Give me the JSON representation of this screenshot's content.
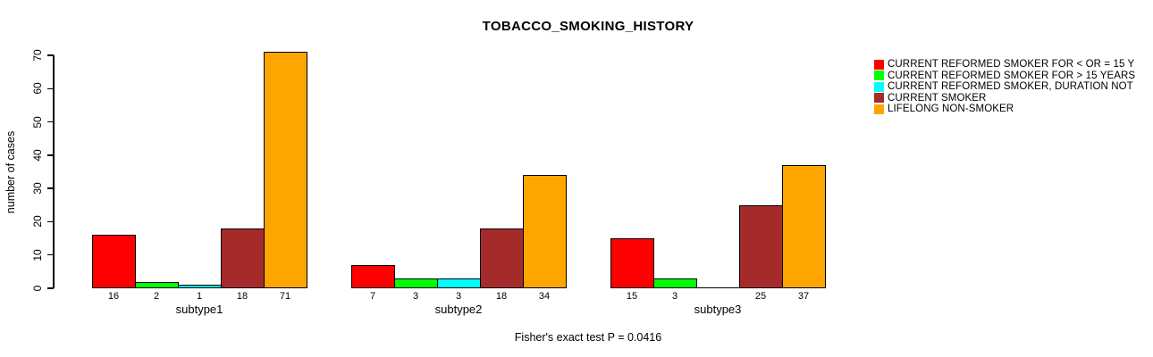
{
  "title": "TOBACCO_SMOKING_HISTORY",
  "caption": "Fisher's exact test P = 0.0416",
  "y_axis": {
    "label": "number of cases",
    "ticks": [
      "0",
      "10",
      "20",
      "30",
      "40",
      "50",
      "60",
      "70"
    ]
  },
  "legend": {
    "items": [
      {
        "label": "CURRENT REFORMED SMOKER FOR < OR = 15 Y",
        "color": "#FF0000",
        "swatch": "red-swatch"
      },
      {
        "label": "CURRENT REFORMED SMOKER FOR > 15 YEARS",
        "color": "#00FF00",
        "swatch": "green-swatch"
      },
      {
        "label": "CURRENT REFORMED SMOKER, DURATION NOT",
        "color": "#00FFFF",
        "swatch": "cyan-swatch"
      },
      {
        "label": "CURRENT SMOKER",
        "color": "#A52A2A",
        "swatch": "brown-swatch"
      },
      {
        "label": "LIFELONG NON-SMOKER",
        "color": "#FFA500",
        "swatch": "orange-swatch"
      }
    ]
  },
  "chart_data": {
    "type": "bar",
    "title": "TOBACCO_SMOKING_HISTORY",
    "xlabel": "",
    "ylabel": "number of cases",
    "ylim": [
      0,
      70
    ],
    "yticks": [
      0,
      10,
      20,
      30,
      40,
      50,
      60,
      70
    ],
    "grid": false,
    "legend_position": "top-right",
    "categories": [
      "subtype1",
      "subtype2",
      "subtype3"
    ],
    "series": [
      {
        "name": "CURRENT REFORMED SMOKER FOR < OR = 15 Y",
        "color": "#FF0000",
        "values": [
          16,
          7,
          15
        ]
      },
      {
        "name": "CURRENT REFORMED SMOKER FOR > 15 YEARS",
        "color": "#00FF00",
        "values": [
          2,
          3,
          3
        ]
      },
      {
        "name": "CURRENT REFORMED SMOKER, DURATION NOT",
        "color": "#00FFFF",
        "values": [
          1,
          3,
          0
        ]
      },
      {
        "name": "CURRENT SMOKER",
        "color": "#A52A2A",
        "values": [
          18,
          18,
          25
        ]
      },
      {
        "name": "LIFELONG NON-SMOKER",
        "color": "#FFA500",
        "values": [
          71,
          34,
          37
        ]
      }
    ],
    "bar_labels": [
      [
        "16",
        "2",
        "1",
        "18",
        "71"
      ],
      [
        "7",
        "3",
        "3",
        "18",
        "34"
      ],
      [
        "15",
        "3",
        "",
        "25",
        "37"
      ]
    ],
    "annotation": "Fisher's exact test P = 0.0416"
  }
}
